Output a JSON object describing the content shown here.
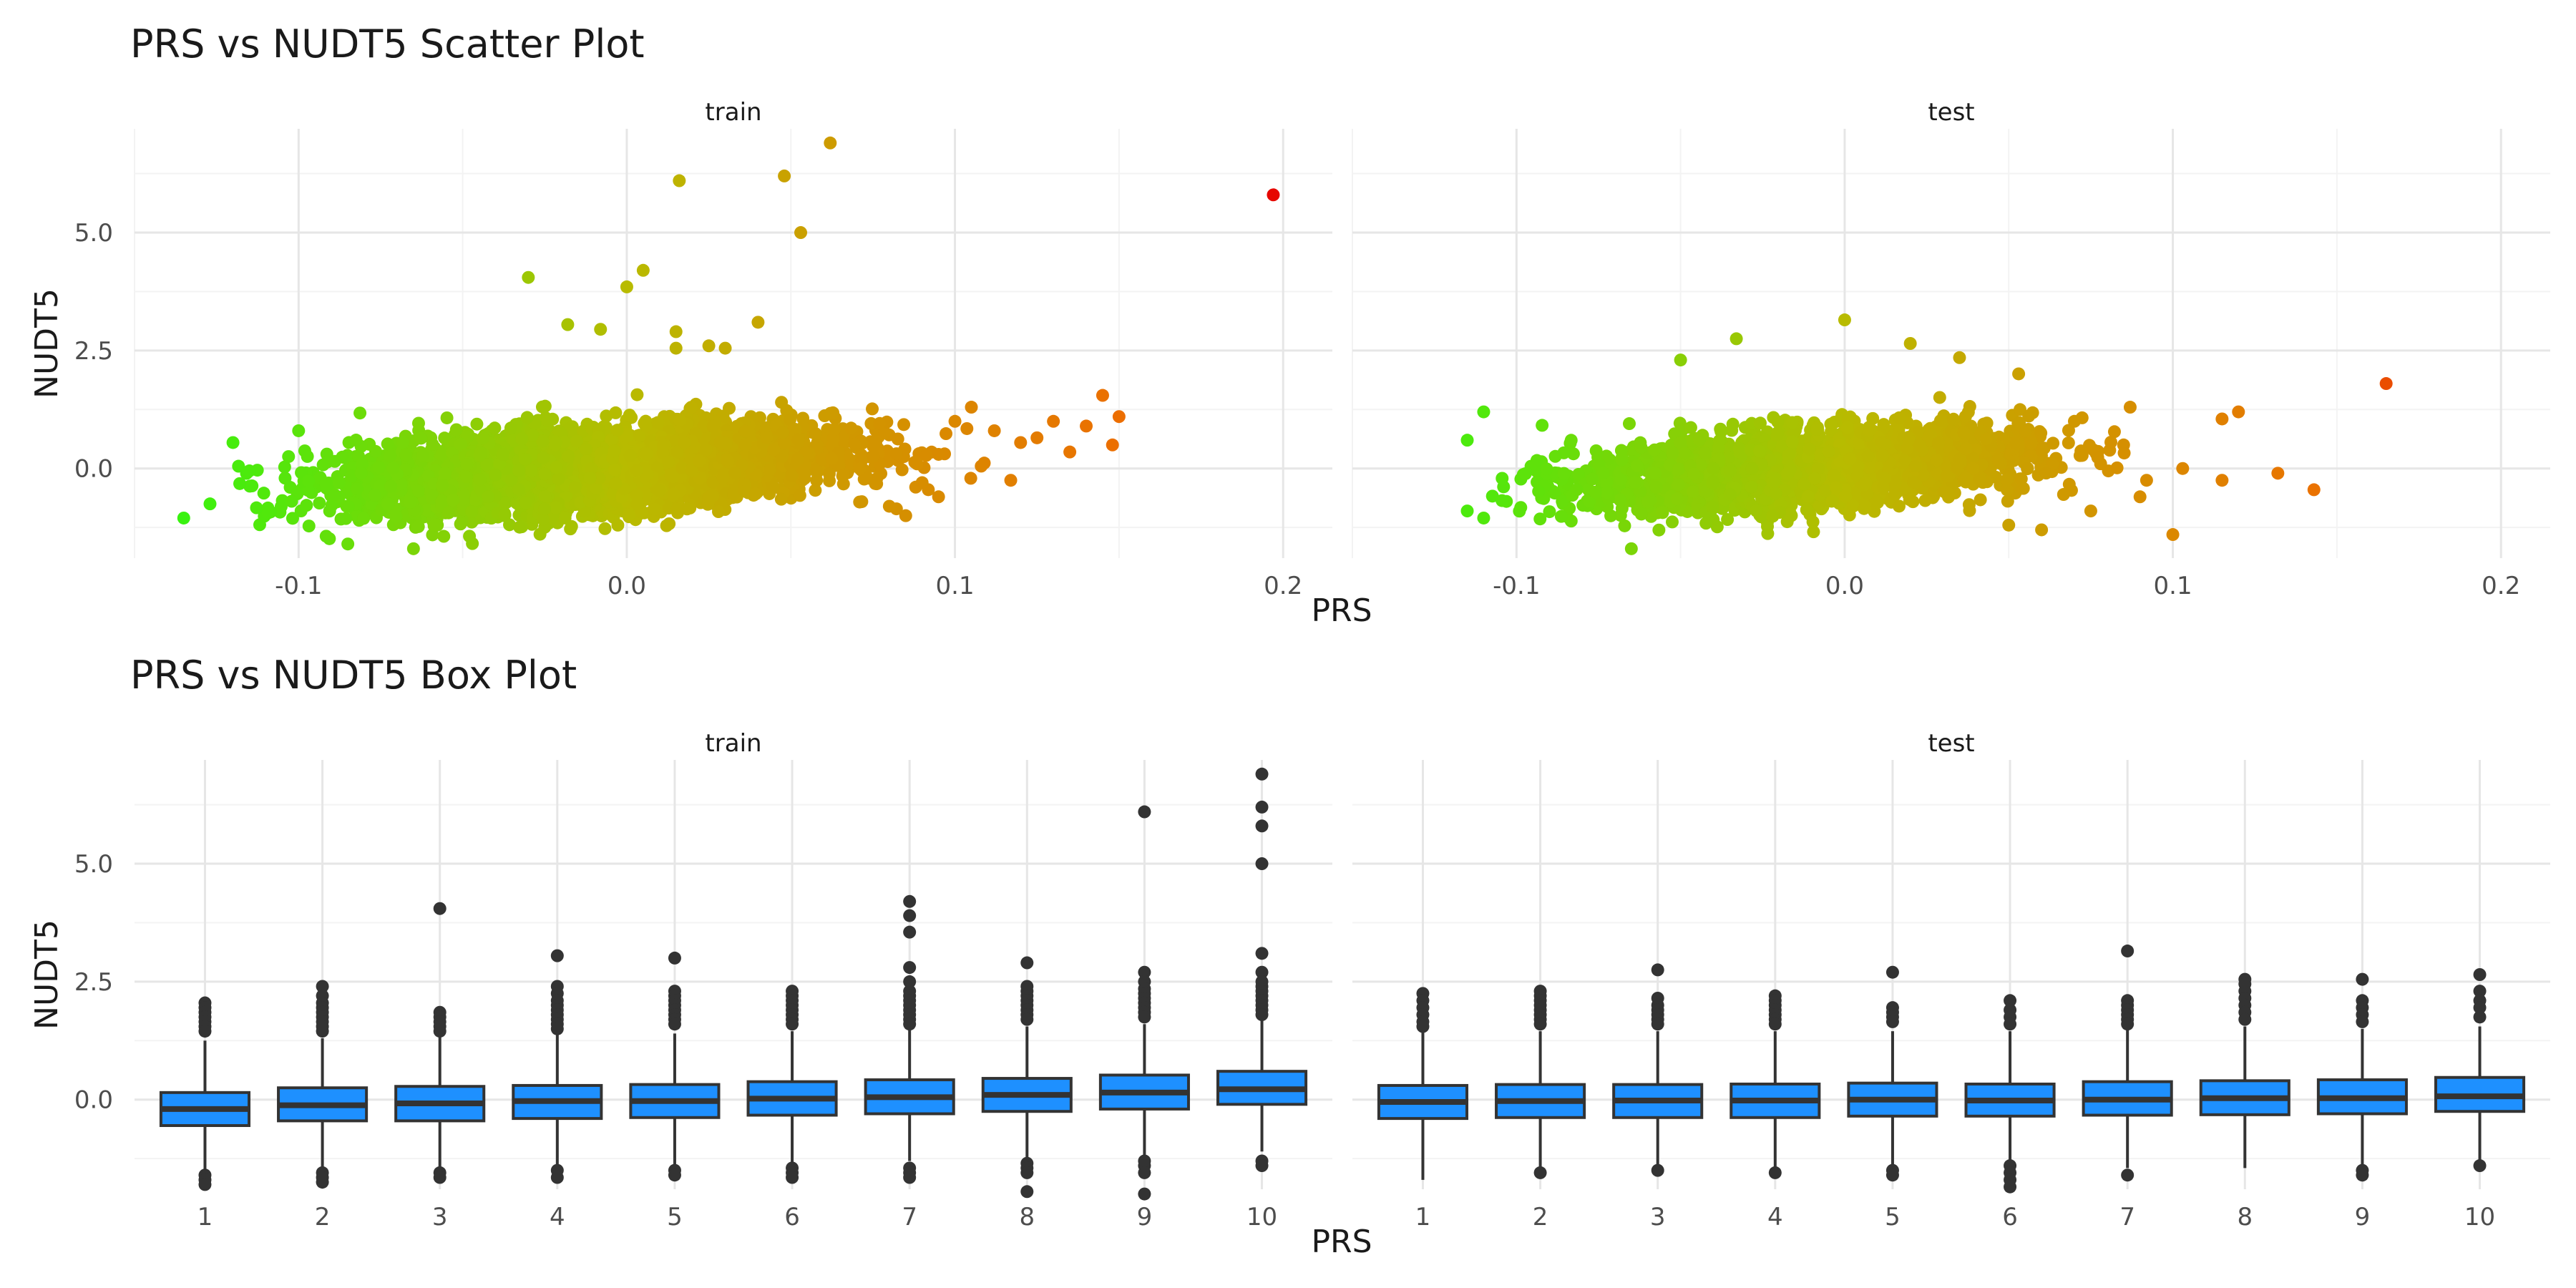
{
  "figure": {
    "scatter_title": "PRS vs NUDT5 Scatter Plot",
    "box_title": "PRS vs NUDT5 Box Plot"
  },
  "colors": {
    "grid_major": "#e6e6e6",
    "grid_minor": "#f3f3f3",
    "tick_text": "#4d4d4d",
    "box_fill": "#1e90ff",
    "box_line": "#333333",
    "outlier": "#333333",
    "gradient_low": "#39f20f",
    "gradient_mid": "#b8bb00",
    "gradient_high": "#e60000"
  },
  "chart_data": [
    {
      "type": "scatter",
      "title": "PRS vs NUDT5 Scatter Plot",
      "xlabel": "PRS",
      "ylabel": "NUDT5",
      "facets": [
        "train",
        "test"
      ],
      "xlim": [
        -0.15,
        0.215
      ],
      "ylim": [
        -1.9,
        7.2
      ],
      "x_ticks": [
        -0.1,
        0.0,
        0.1,
        0.2
      ],
      "x_tick_labels": [
        "-0.1",
        "0.0",
        "0.1",
        "0.2"
      ],
      "y_ticks": [
        0.0,
        2.5,
        5.0
      ],
      "y_tick_labels": [
        "0.0",
        "2.5",
        "5.0"
      ],
      "color_by": "PRS",
      "grid": true,
      "legend": "none",
      "cloud": {
        "train": {
          "x_center": -0.01,
          "x_sd": 0.036,
          "x_range": [
            -0.125,
            0.13
          ],
          "y_center": 0.0,
          "y_sd": 0.42,
          "y_range": [
            -1.6,
            2.3
          ]
        },
        "test": {
          "x_center": -0.012,
          "x_sd": 0.034,
          "x_range": [
            -0.11,
            0.09
          ],
          "y_center": 0.0,
          "y_sd": 0.4,
          "y_range": [
            -1.6,
            2.2
          ]
        }
      },
      "points": {
        "train": [
          [
            0.197,
            5.8
          ],
          [
            0.062,
            6.9
          ],
          [
            0.048,
            6.2
          ],
          [
            0.016,
            6.1
          ],
          [
            0.053,
            5.0
          ],
          [
            0.005,
            4.2
          ],
          [
            -0.03,
            4.05
          ],
          [
            0.0,
            3.85
          ],
          [
            0.04,
            3.1
          ],
          [
            -0.018,
            3.05
          ],
          [
            -0.008,
            2.95
          ],
          [
            0.015,
            2.9
          ],
          [
            0.025,
            2.6
          ],
          [
            0.03,
            2.55
          ],
          [
            0.015,
            2.55
          ],
          [
            0.15,
            1.1
          ],
          [
            0.145,
            1.55
          ],
          [
            0.14,
            0.9
          ],
          [
            0.148,
            0.5
          ],
          [
            0.13,
            1.0
          ],
          [
            0.135,
            0.35
          ],
          [
            0.125,
            0.65
          ],
          [
            0.12,
            0.55
          ],
          [
            0.117,
            -0.25
          ],
          [
            0.112,
            0.8
          ],
          [
            0.105,
            1.3
          ],
          [
            0.108,
            0.05
          ],
          [
            0.1,
            1.0
          ],
          [
            0.095,
            0.3
          ],
          [
            0.095,
            -0.6
          ],
          [
            0.085,
            -1.0
          ],
          [
            0.08,
            -0.8
          ],
          [
            0.09,
            -0.3
          ],
          [
            -0.135,
            -1.05
          ],
          [
            -0.127,
            -0.75
          ],
          [
            -0.12,
            0.55
          ],
          [
            -0.115,
            -0.05
          ],
          [
            -0.1,
            0.8
          ],
          [
            -0.085,
            -1.6
          ],
          [
            -0.065,
            -1.7
          ]
        ],
        "test": [
          [
            0.165,
            1.8
          ],
          [
            0.143,
            -0.45
          ],
          [
            0.132,
            -0.1
          ],
          [
            0.12,
            1.2
          ],
          [
            0.115,
            1.05
          ],
          [
            0.115,
            -0.25
          ],
          [
            0.1,
            -1.4
          ],
          [
            0.103,
            0.0
          ],
          [
            0.092,
            -0.25
          ],
          [
            0.087,
            1.3
          ],
          [
            0.09,
            -0.6
          ],
          [
            0.085,
            0.5
          ],
          [
            0.078,
            0.1
          ],
          [
            0.075,
            -0.9
          ],
          [
            0.07,
            1.0
          ],
          [
            0.0,
            3.15
          ],
          [
            0.035,
            2.35
          ],
          [
            -0.033,
            2.75
          ],
          [
            0.02,
            2.65
          ],
          [
            -0.05,
            2.3
          ],
          [
            -0.11,
            1.2
          ],
          [
            -0.115,
            0.6
          ],
          [
            -0.115,
            -0.9
          ],
          [
            -0.11,
            -1.05
          ],
          [
            -0.065,
            -1.7
          ],
          [
            0.05,
            -1.2
          ],
          [
            0.06,
            -1.3
          ]
        ]
      }
    },
    {
      "type": "box",
      "title": "PRS vs NUDT5 Box Plot",
      "xlabel": "PRS",
      "ylabel": "NUDT5",
      "facets": [
        "train",
        "test"
      ],
      "categories": [
        "1",
        "2",
        "3",
        "4",
        "5",
        "6",
        "7",
        "8",
        "9",
        "10"
      ],
      "ylim": [
        -1.9,
        7.2
      ],
      "y_ticks": [
        0.0,
        2.5,
        5.0
      ],
      "y_tick_labels": [
        "0.0",
        "2.5",
        "5.0"
      ],
      "grid": true,
      "legend": "none",
      "series": [
        {
          "name": "train",
          "boxes": [
            {
              "q1": -0.55,
              "median": -0.2,
              "q3": 0.15,
              "whisker_low": -1.55,
              "whisker_high": 1.25,
              "outliers": [
                2.05,
                1.95,
                1.85,
                1.75,
                1.65,
                1.55,
                1.45,
                -1.6,
                -1.7,
                -1.8
              ]
            },
            {
              "q1": -0.45,
              "median": -0.12,
              "q3": 0.25,
              "whisker_low": -1.5,
              "whisker_high": 1.3,
              "outliers": [
                2.4,
                2.2,
                2.05,
                1.95,
                1.85,
                1.75,
                1.65,
                1.55,
                1.45,
                -1.55,
                -1.65,
                -1.75
              ]
            },
            {
              "q1": -0.45,
              "median": -0.08,
              "q3": 0.28,
              "whisker_low": -1.45,
              "whisker_high": 1.35,
              "outliers": [
                4.05,
                1.85,
                1.75,
                1.65,
                1.55,
                1.45,
                -1.55,
                -1.65
              ]
            },
            {
              "q1": -0.4,
              "median": -0.03,
              "q3": 0.3,
              "whisker_low": -1.45,
              "whisker_high": 1.4,
              "outliers": [
                3.05,
                2.4,
                2.25,
                2.1,
                2.0,
                1.9,
                1.8,
                1.7,
                1.6,
                1.5,
                -1.5,
                -1.65
              ]
            },
            {
              "q1": -0.38,
              "median": -0.03,
              "q3": 0.32,
              "whisker_low": -1.4,
              "whisker_high": 1.4,
              "outliers": [
                3.0,
                2.3,
                2.2,
                2.1,
                2.0,
                1.9,
                1.8,
                1.7,
                1.6,
                -1.5,
                -1.6
              ]
            },
            {
              "q1": -0.33,
              "median": 0.02,
              "q3": 0.38,
              "whisker_low": -1.35,
              "whisker_high": 1.45,
              "outliers": [
                2.3,
                2.2,
                2.1,
                2.0,
                1.9,
                1.8,
                1.7,
                1.6,
                -1.45,
                -1.55,
                -1.65
              ]
            },
            {
              "q1": -0.3,
              "median": 0.05,
              "q3": 0.42,
              "whisker_low": -1.3,
              "whisker_high": 1.5,
              "outliers": [
                4.2,
                3.9,
                3.55,
                2.8,
                2.5,
                2.3,
                2.2,
                2.1,
                2.0,
                1.9,
                1.8,
                1.7,
                1.6,
                -1.45,
                -1.55,
                -1.65
              ]
            },
            {
              "q1": -0.25,
              "median": 0.1,
              "q3": 0.45,
              "whisker_low": -1.25,
              "whisker_high": 1.55,
              "outliers": [
                2.9,
                2.4,
                2.3,
                2.2,
                2.1,
                2.0,
                1.9,
                1.8,
                1.7,
                -1.35,
                -1.45,
                -1.55,
                -1.95
              ]
            },
            {
              "q1": -0.2,
              "median": 0.15,
              "q3": 0.52,
              "whisker_low": -1.2,
              "whisker_high": 1.6,
              "outliers": [
                6.1,
                2.7,
                2.5,
                2.35,
                2.25,
                2.15,
                2.05,
                1.95,
                1.85,
                1.75,
                -1.3,
                -1.4,
                -1.55,
                -2.0
              ]
            },
            {
              "q1": -0.1,
              "median": 0.22,
              "q3": 0.6,
              "whisker_low": -1.1,
              "whisker_high": 1.7,
              "outliers": [
                6.9,
                6.2,
                5.8,
                5.0,
                3.1,
                2.7,
                2.5,
                2.4,
                2.3,
                2.2,
                2.1,
                2.0,
                1.9,
                1.8,
                -1.3,
                -1.4
              ]
            }
          ]
        },
        {
          "name": "test",
          "boxes": [
            {
              "q1": -0.4,
              "median": -0.05,
              "q3": 0.3,
              "whisker_low": -1.7,
              "whisker_high": 1.45,
              "outliers": [
                2.25,
                2.1,
                1.95,
                1.8,
                1.65,
                1.55
              ]
            },
            {
              "q1": -0.38,
              "median": -0.03,
              "q3": 0.32,
              "whisker_low": -1.5,
              "whisker_high": 1.45,
              "outliers": [
                2.3,
                2.2,
                2.1,
                2.0,
                1.9,
                1.8,
                1.7,
                1.6,
                -1.55
              ]
            },
            {
              "q1": -0.38,
              "median": -0.02,
              "q3": 0.32,
              "whisker_low": -1.45,
              "whisker_high": 1.45,
              "outliers": [
                2.75,
                2.15,
                2.0,
                1.9,
                1.8,
                1.7,
                1.6,
                -1.5
              ]
            },
            {
              "q1": -0.38,
              "median": -0.02,
              "q3": 0.33,
              "whisker_low": -1.45,
              "whisker_high": 1.45,
              "outliers": [
                2.2,
                2.1,
                2.0,
                1.9,
                1.8,
                1.7,
                1.6,
                -1.55
              ]
            },
            {
              "q1": -0.35,
              "median": 0.0,
              "q3": 0.35,
              "whisker_low": -1.4,
              "whisker_high": 1.45,
              "outliers": [
                2.7,
                1.95,
                1.85,
                1.75,
                1.65,
                -1.5,
                -1.6
              ]
            },
            {
              "q1": -0.35,
              "median": -0.02,
              "q3": 0.33,
              "whisker_low": -1.3,
              "whisker_high": 1.45,
              "outliers": [
                2.1,
                1.9,
                1.75,
                1.6,
                -1.4,
                -1.55,
                -1.7,
                -1.85
              ]
            },
            {
              "q1": -0.33,
              "median": 0.0,
              "q3": 0.38,
              "whisker_low": -1.45,
              "whisker_high": 1.5,
              "outliers": [
                3.15,
                2.1,
                2.0,
                1.9,
                1.8,
                1.7,
                1.6,
                -1.6
              ]
            },
            {
              "q1": -0.32,
              "median": 0.03,
              "q3": 0.4,
              "whisker_low": -1.45,
              "whisker_high": 1.55,
              "outliers": [
                2.55,
                2.45,
                2.3,
                2.15,
                2.0,
                1.85,
                1.7
              ]
            },
            {
              "q1": -0.3,
              "median": 0.03,
              "q3": 0.42,
              "whisker_low": -1.4,
              "whisker_high": 1.5,
              "outliers": [
                2.55,
                2.1,
                1.95,
                1.8,
                1.65,
                -1.5,
                -1.6
              ]
            },
            {
              "q1": -0.25,
              "median": 0.07,
              "q3": 0.47,
              "whisker_low": -1.3,
              "whisker_high": 1.55,
              "outliers": [
                2.65,
                2.3,
                2.1,
                1.95,
                1.75,
                -1.4
              ]
            }
          ]
        }
      ]
    }
  ]
}
